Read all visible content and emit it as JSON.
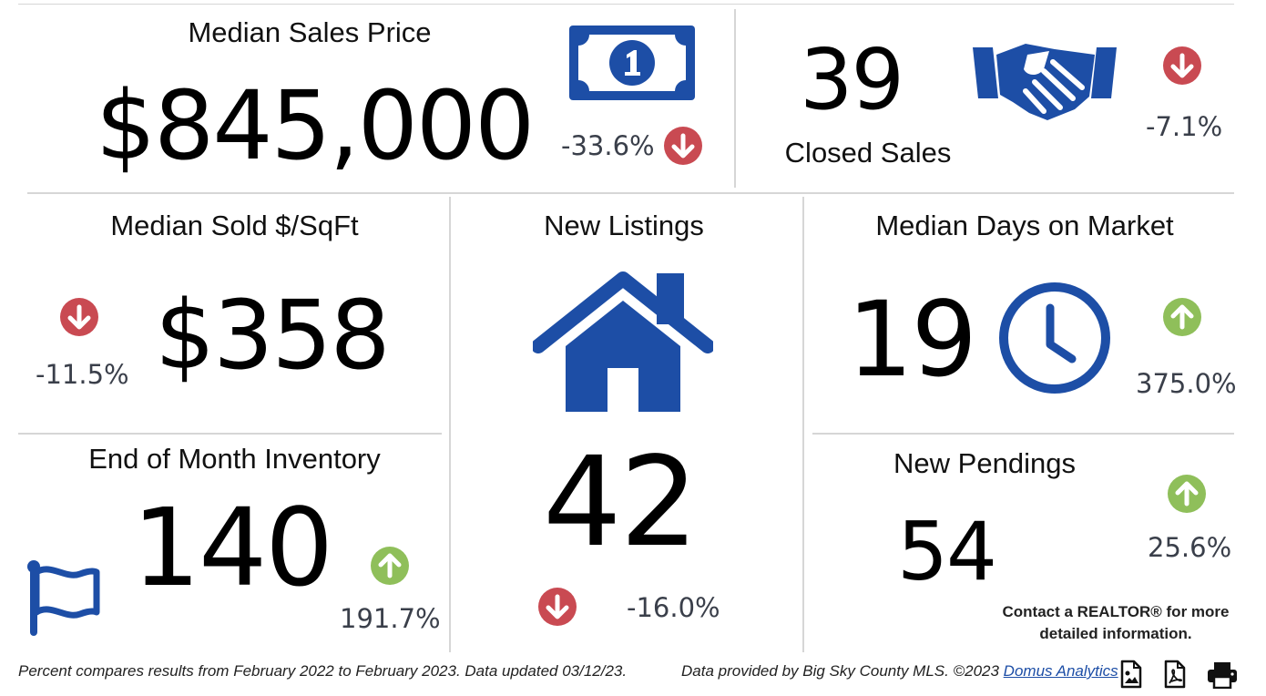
{
  "median_sales_price": {
    "title": "Median Sales Price",
    "value": "$845,000",
    "change": "-33.6%",
    "direction": "down",
    "icon": "dollar-bill-icon"
  },
  "closed_sales": {
    "title": "Closed Sales",
    "value": "39",
    "change": "-7.1%",
    "direction": "down",
    "icon": "handshake-icon"
  },
  "median_sold_sqft": {
    "title": "Median Sold $/SqFt",
    "value": "$358",
    "change": "-11.5%",
    "direction": "down"
  },
  "new_listings": {
    "title": "New Listings",
    "value": "42",
    "change": "-16.0%",
    "direction": "down",
    "icon": "house-icon"
  },
  "median_days_on_market": {
    "title": "Median Days on Market",
    "value": "19",
    "change": "375.0%",
    "direction": "up",
    "icon": "clock-icon"
  },
  "end_of_month_inventory": {
    "title": "End of Month Inventory",
    "value": "140",
    "change": "191.7%",
    "direction": "up",
    "icon": "flag-icon"
  },
  "new_pendings": {
    "title": "New Pendings",
    "value": "54",
    "change": "25.6%",
    "direction": "up"
  },
  "contact_text": "Contact a REALTOR® for more detailed information.",
  "footer": {
    "note": "Percent compares results from February 2022 to February 2023.  Data updated 03/12/23.",
    "provided_by": "Data provided by Big Sky County MLS. ©2023",
    "link_text": "Domus Analytics"
  },
  "colors": {
    "icon_blue": "#1d4ea6",
    "down_red": "#c94a52",
    "up_green": "#8fbf5a"
  }
}
